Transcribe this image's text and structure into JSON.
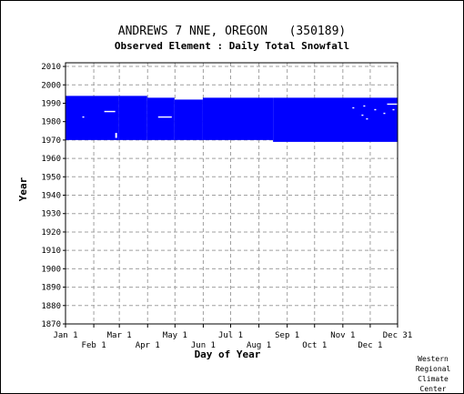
{
  "header": {
    "station_title": "ANDREWS 7 NNE, OREGON   (350189)",
    "subtitle": "Observed Element : Daily Total Snowfall"
  },
  "credit": {
    "lines": [
      "Western",
      "Regional",
      "Climate",
      "Center"
    ]
  },
  "chart_data": {
    "type": "heatmap",
    "title": "ANDREWS 7 NNE, OREGON   (350189)",
    "subtitle": "Observed Element : Daily Total Snowfall",
    "xlabel": "Day of Year",
    "ylabel": "Year",
    "xlim": [
      1,
      365
    ],
    "ylim": [
      1870,
      2012
    ],
    "x_ticks_upper": [
      {
        "label": "Jan 1",
        "day": 1
      },
      {
        "label": "Mar 1",
        "day": 60
      },
      {
        "label": "May 1",
        "day": 121
      },
      {
        "label": "Jul 1",
        "day": 182
      },
      {
        "label": "Sep 1",
        "day": 244
      },
      {
        "label": "Nov 1",
        "day": 305
      },
      {
        "label": "Dec 31",
        "day": 365
      }
    ],
    "x_ticks_lower": [
      {
        "label": "Feb 1",
        "day": 32
      },
      {
        "label": "Apr 1",
        "day": 91
      },
      {
        "label": "Jun 1",
        "day": 152
      },
      {
        "label": "Aug 1",
        "day": 213
      },
      {
        "label": "Oct 1",
        "day": 274
      },
      {
        "label": "Dec 1",
        "day": 335
      }
    ],
    "y_ticks": [
      1870,
      1880,
      1890,
      1900,
      1910,
      1920,
      1930,
      1940,
      1950,
      1960,
      1970,
      1980,
      1990,
      2000,
      2010
    ],
    "grid": true,
    "color": "#0000ff",
    "data_coverage": [
      {
        "day_start": 1,
        "day_end": 59,
        "year_start": 1970,
        "year_end": 1993
      },
      {
        "day_start": 60,
        "day_end": 90,
        "year_start": 1970,
        "year_end": 1993
      },
      {
        "day_start": 91,
        "day_end": 120,
        "year_start": 1970,
        "year_end": 1992
      },
      {
        "day_start": 121,
        "day_end": 151,
        "year_start": 1970,
        "year_end": 1991
      },
      {
        "day_start": 152,
        "day_end": 228,
        "year_start": 1970,
        "year_end": 1992
      },
      {
        "day_start": 229,
        "day_end": 365,
        "year_start": 1969,
        "year_end": 1992
      }
    ],
    "missing_data": [
      {
        "day_start": 20,
        "day_end": 21,
        "year_start": 1982,
        "year_end": 1982
      },
      {
        "day_start": 44,
        "day_end": 55,
        "year_start": 1985,
        "year_end": 1985
      },
      {
        "day_start": 103,
        "day_end": 117,
        "year_start": 1982,
        "year_end": 1982
      },
      {
        "day_start": 56,
        "day_end": 57,
        "year_start": 1971,
        "year_end": 1973
      },
      {
        "day_start": 316,
        "day_end": 317,
        "year_start": 1987,
        "year_end": 1987
      },
      {
        "day_start": 326,
        "day_end": 327,
        "year_start": 1983,
        "year_end": 1983
      },
      {
        "day_start": 328,
        "day_end": 329,
        "year_start": 1988,
        "year_end": 1988
      },
      {
        "day_start": 331,
        "day_end": 332,
        "year_start": 1981,
        "year_end": 1981
      },
      {
        "day_start": 340,
        "day_end": 341,
        "year_start": 1986,
        "year_end": 1986
      },
      {
        "day_start": 350,
        "day_end": 351,
        "year_start": 1984,
        "year_end": 1984
      },
      {
        "day_start": 354,
        "day_end": 364,
        "year_start": 1989,
        "year_end": 1989
      },
      {
        "day_start": 360,
        "day_end": 361,
        "year_start": 1986,
        "year_end": 1986
      }
    ]
  }
}
